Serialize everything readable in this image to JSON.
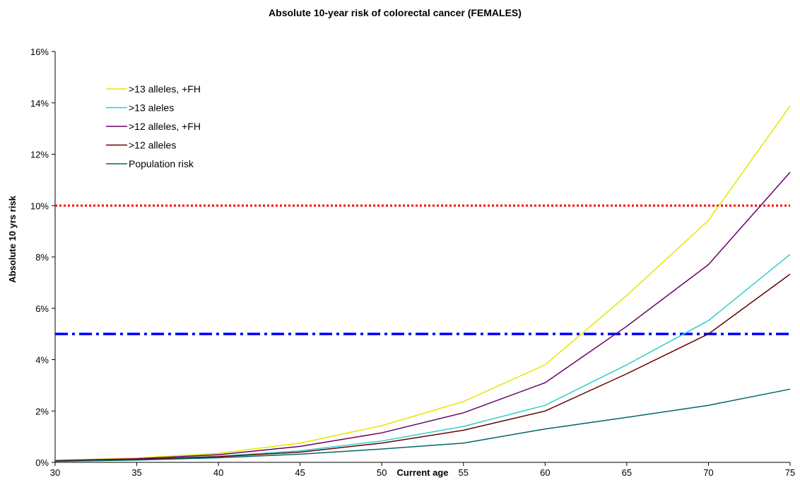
{
  "chart_data": {
    "type": "line",
    "title": "Absolute 10-year risk of colorectal cancer (FEMALES)",
    "xlabel": "Current age",
    "ylabel": "Absolute 10 yrs risk",
    "x": [
      30,
      35,
      40,
      45,
      50,
      55,
      60,
      65,
      70,
      75
    ],
    "xlim": [
      30,
      75
    ],
    "ylim": [
      0,
      16
    ],
    "x_ticks": [
      "30",
      "35",
      "40",
      "45",
      "50",
      "55",
      "60",
      "65",
      "70",
      "75"
    ],
    "y_ticks": [
      "0%",
      "2%",
      "4%",
      "6%",
      "8%",
      "10%",
      "12%",
      "14%",
      "16%"
    ],
    "y_tick_values": [
      0,
      2,
      4,
      6,
      8,
      10,
      12,
      14,
      16
    ],
    "grid": false,
    "legend_position": "top-left",
    "series": [
      {
        "name": ">13 alleles, +FH",
        "color": "#e6e600",
        "values": [
          0.08,
          0.17,
          0.35,
          0.75,
          1.43,
          2.37,
          3.8,
          6.5,
          9.42,
          13.88
        ]
      },
      {
        "name": ">13 aleles",
        "color": "#33cccc",
        "values": [
          0.06,
          0.12,
          0.24,
          0.45,
          0.83,
          1.4,
          2.22,
          3.8,
          5.52,
          8.1
        ]
      },
      {
        "name": ">12 alleles, +FH",
        "color": "#660066",
        "values": [
          0.07,
          0.14,
          0.3,
          0.62,
          1.15,
          1.93,
          3.1,
          5.3,
          7.7,
          11.3
        ]
      },
      {
        "name": ">12 alleles",
        "color": "#660000",
        "values": [
          0.05,
          0.11,
          0.22,
          0.4,
          0.75,
          1.25,
          2.0,
          3.45,
          5.0,
          7.33
        ]
      },
      {
        "name": "Population risk",
        "color": "#006666",
        "values": [
          0.04,
          0.09,
          0.18,
          0.32,
          0.52,
          0.75,
          1.3,
          1.75,
          2.22,
          2.85
        ]
      }
    ],
    "reference_lines": [
      {
        "y": 10,
        "color": "#ff0000",
        "style": "dotted"
      },
      {
        "y": 5,
        "color": "#0000ff",
        "style": "dash-dot"
      }
    ]
  }
}
